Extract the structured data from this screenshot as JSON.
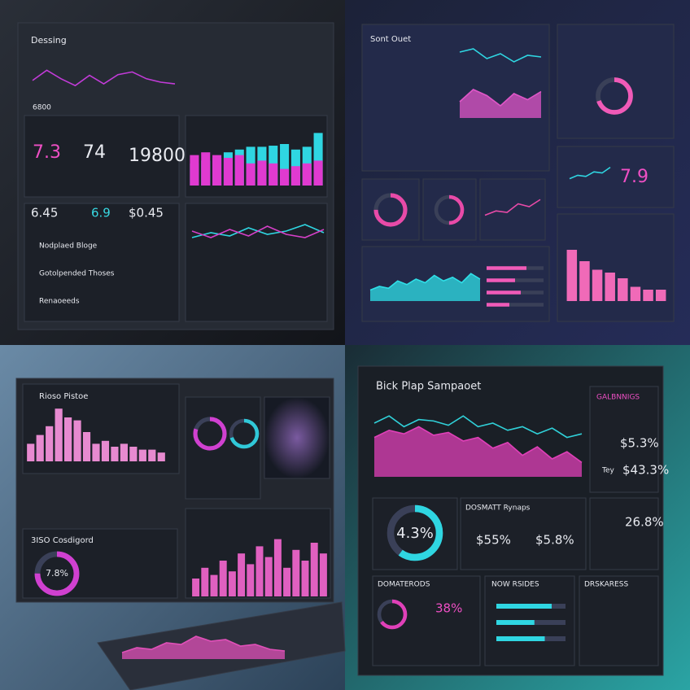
{
  "q1": {
    "title": "Dessing",
    "stat": "6800",
    "kpis": [
      "7.3",
      "74",
      "19800"
    ],
    "kpis2": [
      "6.45",
      "6.9",
      "$0.45"
    ],
    "list": [
      "Nodplaed Bloge",
      "Gotolpended Thoses",
      "Renaoeeds"
    ],
    "line": {
      "type": "line",
      "color": "#c23bd8",
      "ylim": [
        0,
        100
      ],
      "values": [
        55,
        85,
        60,
        40,
        70,
        45,
        72,
        80,
        60,
        50,
        45
      ]
    },
    "bars": {
      "type": "bar",
      "color": "#2fd6e2",
      "ylim": [
        0,
        100
      ],
      "values": [
        40,
        45,
        50,
        60,
        65,
        70,
        70,
        72,
        75,
        65,
        70,
        95
      ]
    },
    "bars_m": {
      "type": "bar",
      "color": "#e03ad0",
      "ylim": [
        0,
        100
      ],
      "values": [
        55,
        60,
        55,
        50,
        55,
        40,
        45,
        40,
        30,
        35,
        40,
        45
      ]
    },
    "mini": {
      "type": "line",
      "color": "#2fd6e2",
      "ylim": [
        0,
        100
      ],
      "values": [
        40,
        55,
        45,
        70,
        50,
        60,
        80,
        55
      ]
    },
    "mini2": {
      "type": "line",
      "color": "#d640c8",
      "ylim": [
        0,
        100
      ],
      "values": [
        60,
        40,
        65,
        45,
        75,
        50,
        40,
        65
      ]
    }
  },
  "q2": {
    "title": "Sont Ouet",
    "kpi": "7.9",
    "lineA": {
      "type": "line",
      "color": "#2fd6e2",
      "ylim": [
        0,
        100
      ],
      "values": [
        60,
        70,
        40,
        55,
        30,
        50,
        45
      ]
    },
    "lineB": {
      "type": "area",
      "color": "#e056c8",
      "ylim": [
        0,
        100
      ],
      "values": [
        40,
        70,
        55,
        30,
        60,
        45,
        65
      ]
    },
    "ring": {
      "type": "ring",
      "color": "#f05ab8",
      "value": 70
    },
    "spark": {
      "type": "line",
      "color": "#2fd6e2",
      "ylim": [
        0,
        100
      ],
      "values": [
        30,
        45,
        40,
        60,
        55,
        80
      ]
    },
    "bars": {
      "type": "bar",
      "color": "#f06ab8",
      "ylim": [
        0,
        100
      ],
      "values": [
        90,
        70,
        55,
        50,
        40,
        25,
        20,
        20
      ]
    },
    "g1": {
      "type": "ring",
      "color": "#e84aa8",
      "value": 75
    },
    "g2": {
      "type": "ring",
      "color": "#e84aa8",
      "value": 50
    },
    "g3": {
      "type": "line",
      "color": "#e84aa8",
      "ylim": [
        0,
        100
      ],
      "values": [
        30,
        45,
        40,
        70,
        60,
        85
      ]
    },
    "area": {
      "type": "area",
      "color": "#2fe0e8",
      "ylim": [
        0,
        100
      ],
      "values": [
        30,
        40,
        35,
        55,
        45,
        60,
        50,
        70,
        55,
        65,
        50,
        75,
        60
      ]
    },
    "progress": {
      "type": "hbar",
      "color": "#f05ab8",
      "ylim": [
        0,
        100
      ],
      "values": [
        70,
        50,
        60,
        40
      ]
    }
  },
  "q3": {
    "title": "Rioso Pistoe",
    "title2": "3ISO Cosdigord",
    "kpi": "7.8%",
    "hist": {
      "type": "bar",
      "color": "#e78ad0",
      "ylim": [
        0,
        100
      ],
      "values": [
        30,
        45,
        60,
        90,
        75,
        70,
        50,
        30,
        35,
        25,
        30,
        25,
        20,
        20,
        15
      ]
    },
    "r1": {
      "type": "ring",
      "color": "#d040d0",
      "value": 80
    },
    "r2": {
      "type": "ring",
      "color": "#30c8d8",
      "value": 70
    },
    "r3": {
      "type": "ring",
      "color": "#d040d0",
      "value": 75
    },
    "bars": {
      "type": "bar",
      "color": "#e060c0",
      "ylim": [
        0,
        100
      ],
      "values": [
        25,
        40,
        30,
        50,
        35,
        60,
        45,
        70,
        55,
        80,
        40,
        65,
        50,
        75,
        60
      ]
    },
    "floor": {
      "type": "area",
      "color": "#e050b8",
      "ylim": [
        0,
        100
      ],
      "values": [
        20,
        35,
        30,
        50,
        45,
        70,
        55,
        60,
        40,
        45,
        30,
        25
      ]
    }
  },
  "q4": {
    "title": "Bick Plap Sampaoet",
    "side": "GALBNNIGS",
    "k1": "$5.3%",
    "k2label": "Tey",
    "k2": "$43.3%",
    "ring_label": "4.3%",
    "mid": "DOSMATT Rynaps",
    "m1": "$55%",
    "m2": "$5.8%",
    "r": "26.8%",
    "sections": [
      "DOMATERODS",
      "NOW RSIDES",
      "DRSKARESS"
    ],
    "small": "38%",
    "area": {
      "type": "area",
      "color": "#e040b8",
      "ylim": [
        0,
        100
      ],
      "values": [
        55,
        65,
        60,
        70,
        58,
        62,
        50,
        55,
        40,
        48,
        30,
        42,
        25,
        35,
        20
      ]
    },
    "line": {
      "type": "line",
      "color": "#30d0d8",
      "ylim": [
        0,
        100
      ],
      "values": [
        75,
        85,
        70,
        80,
        78,
        72,
        85,
        70,
        75,
        65,
        70,
        60,
        68,
        55,
        60
      ]
    },
    "ring": {
      "type": "ring",
      "color": "#2fd6e2",
      "value": 60
    },
    "b1": {
      "type": "ring",
      "color": "#e040b8",
      "value": 65
    },
    "prog": {
      "type": "hbar",
      "color": "#2fd6e2",
      "ylim": [
        0,
        100
      ],
      "values": [
        80,
        55,
        70
      ]
    }
  }
}
